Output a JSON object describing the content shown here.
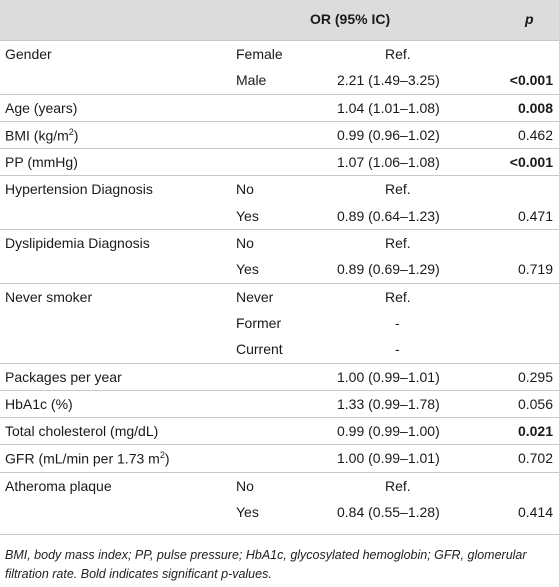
{
  "header": {
    "or_label": "OR (95% IC)",
    "p_label": "p"
  },
  "rows": [
    {
      "var": "Gender",
      "cat": "Female",
      "or": "Ref.",
      "p": "",
      "sep": true
    },
    {
      "var": "",
      "cat": "Male",
      "or": "2.21 (1.49–3.25)",
      "p": "<0.001",
      "bold": true
    },
    {
      "var": "Age (years)",
      "cat": "",
      "or": "1.04 (1.01–1.08)",
      "p": "0.008",
      "bold": true,
      "sep": true
    },
    {
      "var": "BMI (kg/m",
      "var_sup": "2",
      "var_tail": ")",
      "cat": "",
      "or": "0.99 (0.96–1.02)",
      "p": "0.462",
      "sep": true
    },
    {
      "var": "PP (mmHg)",
      "cat": "",
      "or": "1.07 (1.06–1.08)",
      "p": "<0.001",
      "bold": true,
      "sep": true
    },
    {
      "var": "Hypertension Diagnosis",
      "cat": "No",
      "or": "Ref.",
      "p": "",
      "sep": true
    },
    {
      "var": "",
      "cat": "Yes",
      "or": "0.89 (0.64–1.23)",
      "p": "0.471"
    },
    {
      "var": "Dyslipidemia Diagnosis",
      "cat": "No",
      "or": "Ref.",
      "p": "",
      "sep": true
    },
    {
      "var": "",
      "cat": "Yes",
      "or": "0.89 (0.69–1.29)",
      "p": "0.719"
    },
    {
      "var": "Never smoker",
      "cat": "Never",
      "or": "Ref.",
      "p": "",
      "sep": true
    },
    {
      "var": "",
      "cat": "Former",
      "or": "-",
      "p": ""
    },
    {
      "var": "",
      "cat": "Current",
      "or": "-",
      "p": ""
    },
    {
      "var": "Packages per year",
      "cat": "",
      "or": "1.00 (0.99–1.01)",
      "p": "0.295",
      "sep": true
    },
    {
      "var": "HbA1c (%)",
      "cat": "",
      "or": "1.33 (0.99–1.78)",
      "p": "0.056",
      "sep": true
    },
    {
      "var": "Total cholesterol (mg/dL)",
      "cat": "",
      "or": "0.99 (0.99–1.00)",
      "p": "0.021",
      "bold": true,
      "sep": true
    },
    {
      "var": "GFR (mL/min per 1.73 m",
      "var_sup": "2",
      "var_tail": ")",
      "cat": "",
      "or": "1.00 (0.99–1.01)",
      "p": "0.702",
      "sep": true
    },
    {
      "var": "Atheroma plaque",
      "cat": "No",
      "or": "Ref.",
      "p": "",
      "sep": true
    },
    {
      "var": "",
      "cat": "Yes",
      "or": "0.84 (0.55–1.28)",
      "p": "0.414"
    }
  ],
  "footnote": "BMI, body mass index; PP, pulse pressure; HbA1c, glycosylated hemoglobin; GFR, glomerular filtration rate. Bold indicates significant p-values."
}
